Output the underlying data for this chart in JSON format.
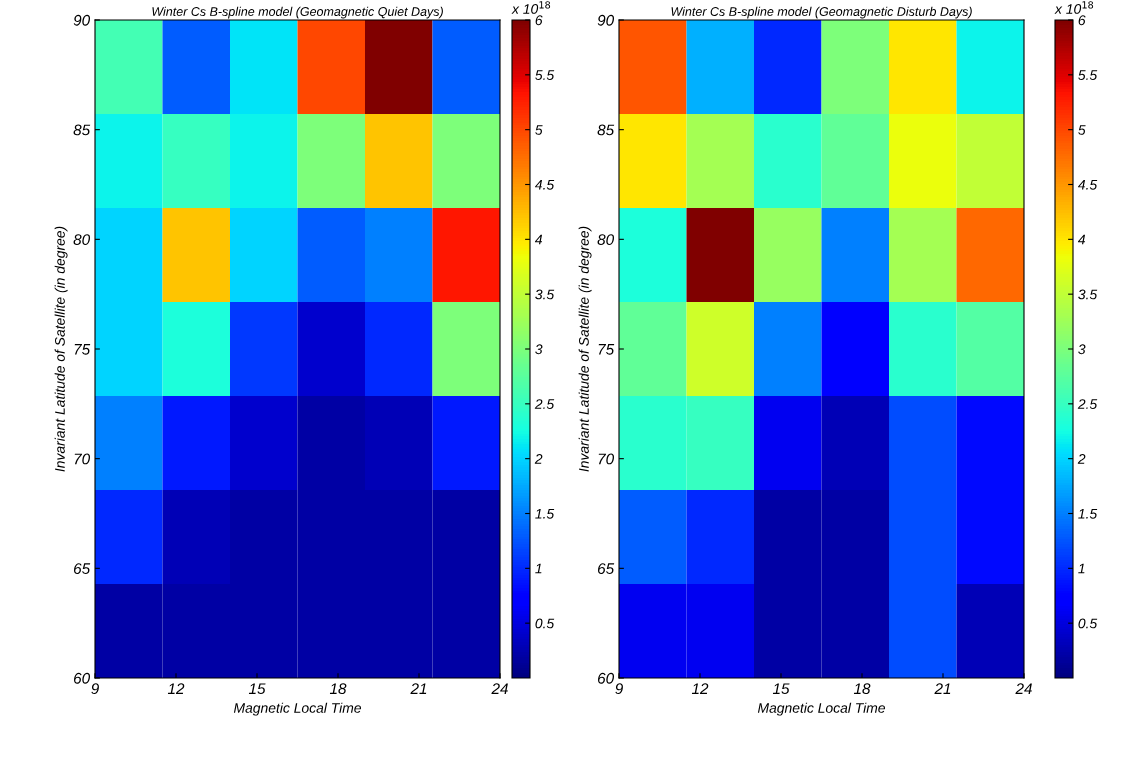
{
  "chart_data": [
    {
      "type": "heatmap",
      "title": "Winter Cs B-spline model (Geomagnetic Quiet Days)",
      "xlabel": "Magnetic Local Time",
      "ylabel": "Invariant Latitude of Satellite (in degree)",
      "xlim": [
        9,
        24
      ],
      "xticks": [
        9,
        12,
        15,
        18,
        21,
        24
      ],
      "ylim": [
        60,
        90
      ],
      "yticks": [
        60,
        65,
        70,
        75,
        80,
        85,
        90
      ],
      "clim": [
        0,
        6
      ],
      "cticks": [
        0.5,
        1,
        1.5,
        2,
        2.5,
        3,
        3.5,
        4,
        4.5,
        5,
        5.5,
        6
      ],
      "annotations": [
        "x 10$^{18}$"
      ],
      "cells": [
        [
          2.6,
          1.3,
          2.1,
          5.0,
          6.0,
          1.3
        ],
        [
          2.2,
          2.5,
          2.2,
          3.0,
          4.2,
          3.0
        ],
        [
          2.0,
          4.2,
          2.0,
          1.3,
          1.5,
          5.3
        ],
        [
          2.0,
          2.3,
          1.1,
          0.4,
          1.0,
          3.0
        ],
        [
          1.5,
          0.9,
          0.4,
          0.2,
          0.3,
          0.9
        ],
        [
          1.0,
          0.3,
          0.2,
          0.2,
          0.2,
          0.2
        ],
        [
          0.2,
          0.2,
          0.2,
          0.2,
          0.2,
          0.2
        ]
      ]
    },
    {
      "type": "heatmap",
      "title": "Winter Cs B-spline model (Geomagnetic Disturb Days)",
      "xlabel": "Magnetic Local Time",
      "ylabel": "Invariant Latitude of Satellite (in degree)",
      "xlim": [
        9,
        24
      ],
      "xticks": [
        9,
        12,
        15,
        18,
        21,
        24
      ],
      "ylim": [
        60,
        90
      ],
      "yticks": [
        60,
        65,
        70,
        75,
        80,
        85,
        90
      ],
      "clim": [
        0,
        6
      ],
      "cticks": [
        0.5,
        1,
        1.5,
        2,
        2.5,
        3,
        3.5,
        4,
        4.5,
        5,
        5.5,
        6
      ],
      "annotations": [
        "x 10$^{18}$"
      ],
      "cells": [
        [
          4.9,
          1.8,
          1.0,
          3.0,
          4.0,
          2.2
        ],
        [
          4.0,
          3.3,
          2.4,
          2.8,
          3.8,
          3.5
        ],
        [
          2.3,
          6.0,
          3.2,
          1.5,
          3.3,
          4.8
        ],
        [
          2.8,
          3.6,
          1.5,
          0.7,
          2.4,
          2.7
        ],
        [
          2.4,
          2.5,
          0.6,
          0.3,
          1.2,
          0.8
        ],
        [
          1.3,
          1.0,
          0.2,
          0.2,
          1.2,
          0.8
        ],
        [
          0.6,
          0.6,
          0.2,
          0.2,
          1.2,
          0.3
        ]
      ]
    }
  ]
}
